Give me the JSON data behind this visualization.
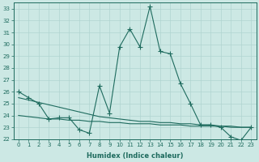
{
  "xlabel": "Humidex (Indice chaleur)",
  "x": [
    0,
    1,
    2,
    3,
    4,
    5,
    6,
    7,
    8,
    9,
    10,
    11,
    12,
    13,
    14,
    15,
    16,
    17,
    18,
    19,
    20,
    21,
    22,
    23
  ],
  "line1": [
    26.0,
    25.5,
    25.0,
    23.7,
    23.8,
    23.8,
    22.8,
    22.5,
    26.5,
    24.2,
    29.8,
    31.3,
    29.8,
    33.2,
    29.4,
    29.2,
    26.7,
    25.0,
    23.2,
    23.2,
    23.0,
    22.2,
    21.9,
    23.0
  ],
  "line2_x": [
    0,
    1,
    2,
    3,
    4,
    5,
    6,
    7,
    8,
    9,
    10,
    11,
    12,
    13,
    14,
    15,
    16,
    17,
    18,
    19,
    20,
    21,
    22,
    23
  ],
  "line2_y": [
    25.5,
    25.3,
    25.1,
    24.9,
    24.7,
    24.5,
    24.3,
    24.1,
    23.9,
    23.8,
    23.7,
    23.6,
    23.5,
    23.5,
    23.4,
    23.4,
    23.3,
    23.3,
    23.2,
    23.2,
    23.1,
    23.1,
    23.0,
    23.0
  ],
  "line3_x": [
    0,
    1,
    2,
    3,
    4,
    5,
    6,
    7,
    8,
    9,
    10,
    11,
    12,
    13,
    14,
    15,
    16,
    17,
    18,
    19,
    20,
    21,
    22,
    23
  ],
  "line3_y": [
    24.0,
    23.9,
    23.8,
    23.7,
    23.7,
    23.6,
    23.6,
    23.5,
    23.5,
    23.4,
    23.4,
    23.3,
    23.3,
    23.3,
    23.2,
    23.2,
    23.2,
    23.1,
    23.1,
    23.1,
    23.1,
    23.0,
    23.0,
    23.0
  ],
  "xlim": [
    -0.5,
    23.5
  ],
  "ylim": [
    22.0,
    33.5
  ],
  "yticks": [
    22,
    23,
    24,
    25,
    26,
    27,
    28,
    29,
    30,
    31,
    32,
    33
  ],
  "bg_color": "#cce8e4",
  "grid_color": "#b0d4d0",
  "line_color": "#1e6b5e",
  "line_width": 0.8,
  "marker": "+",
  "marker_size": 4,
  "tick_fontsize": 5.0,
  "xlabel_fontsize": 6.0
}
